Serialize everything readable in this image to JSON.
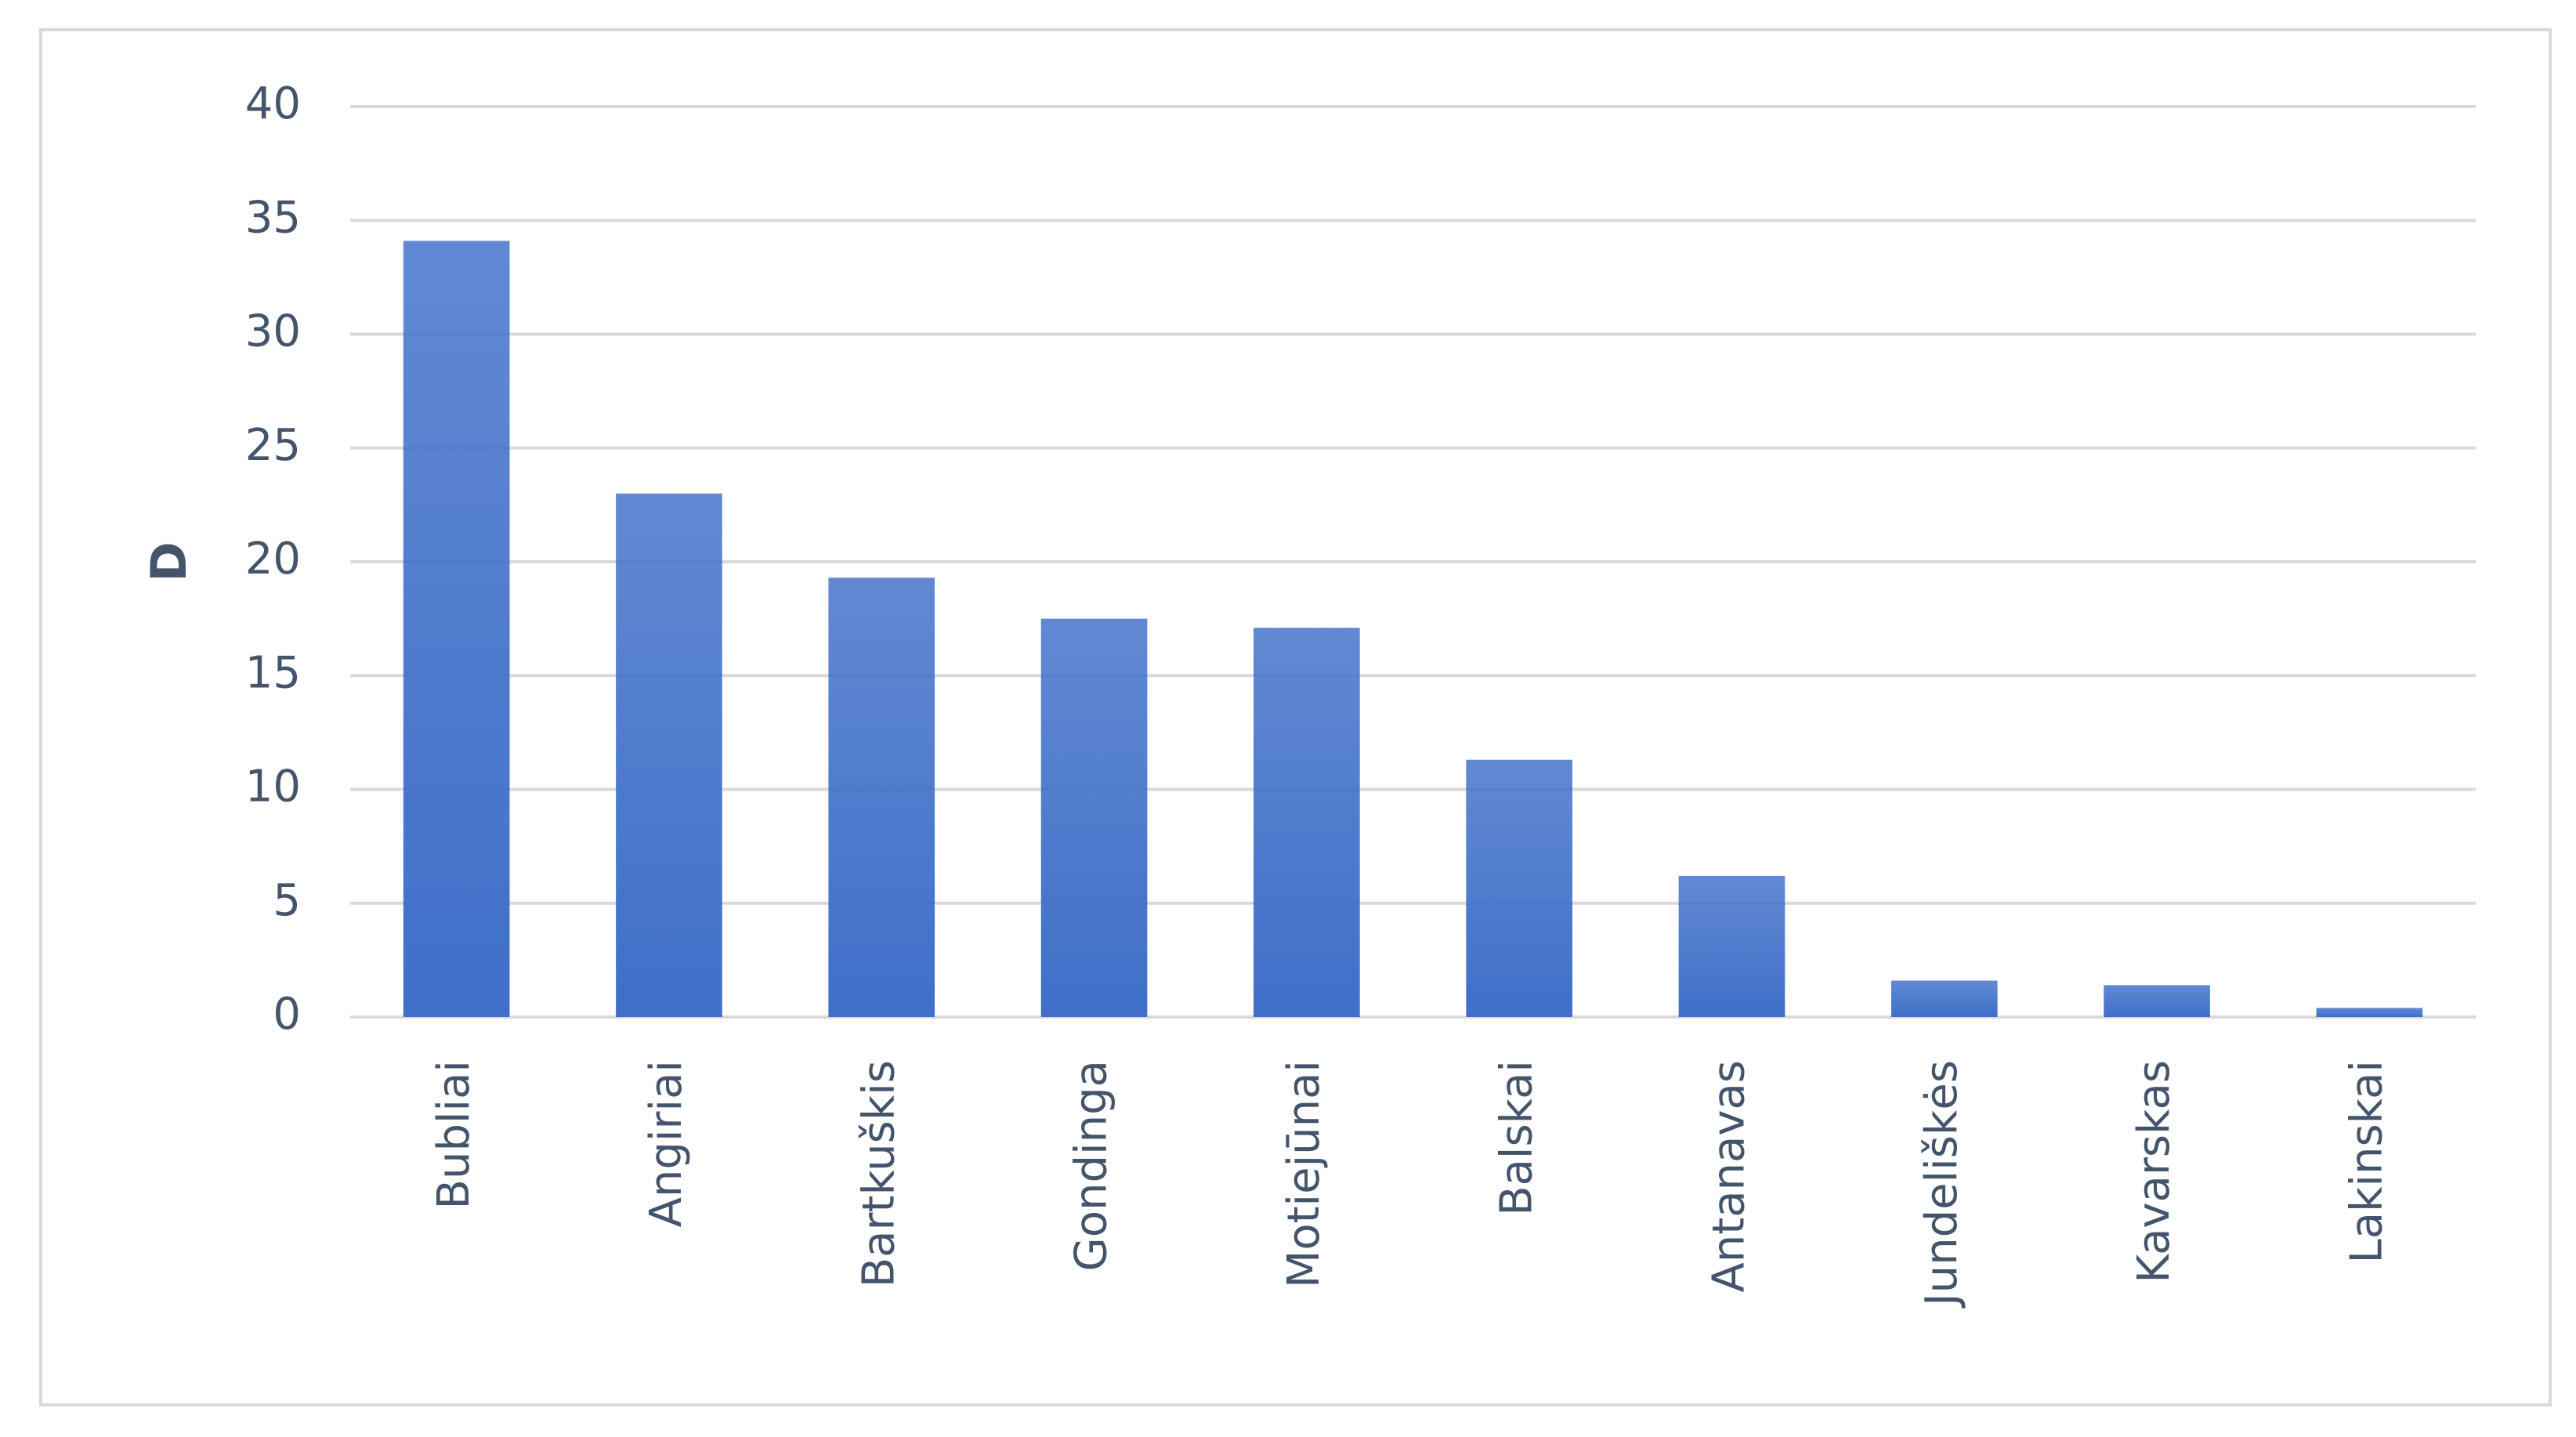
{
  "chart_data": {
    "type": "bar",
    "y_label": "D",
    "categories": [
      "Bubliai",
      "Angiriai",
      "Bartkuškis",
      "Gondinga",
      "Motiejūnai",
      "Balskai",
      "Antanavas",
      "Jundeliškės",
      "Kavarskas",
      "Lakinskai"
    ],
    "values": [
      34.1,
      23.0,
      19.3,
      17.5,
      17.1,
      11.3,
      6.2,
      1.6,
      1.4,
      0.4
    ],
    "color": "#3f6fc9",
    "ylim": [
      0,
      40
    ],
    "yticks": [
      0,
      5,
      10,
      15,
      20,
      25,
      30,
      35,
      40
    ],
    "grid": true
  }
}
